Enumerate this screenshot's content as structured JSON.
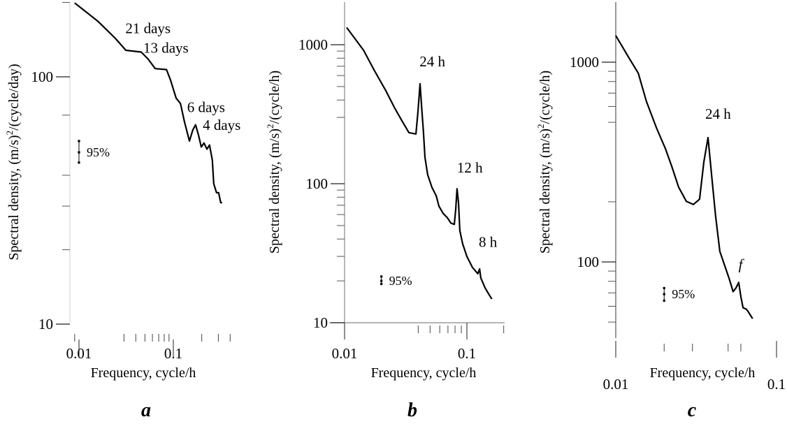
{
  "chart_data": [
    {
      "type": "line",
      "panel_label": "a",
      "xscale": "log",
      "yscale": "log",
      "xlabel": "Frequency, cycle/h",
      "ylabel_main": "Spectral density, (m/s)",
      "ylabel_sup": "2",
      "ylabel_tail": "/(cycle/day)",
      "xlim": [
        0.008,
        0.4
      ],
      "ylim": [
        10,
        200
      ],
      "x_ticks": [
        {
          "v": 0.01,
          "label": "0.01"
        },
        {
          "v": 0.1,
          "label": "0.1"
        }
      ],
      "x_minor_ticks": [
        0.009,
        0.03,
        0.04,
        0.05,
        0.06,
        0.07,
        0.08,
        0.09,
        0.2,
        0.3,
        0.4
      ],
      "y_ticks": [
        {
          "v": 10,
          "label": "10"
        },
        {
          "v": 100,
          "label": "100"
        }
      ],
      "y_minor_ticks": [
        20,
        30,
        40,
        70,
        200
      ],
      "series": [
        {
          "name": "spectrum",
          "x": [
            0.009,
            0.0158,
            0.0243,
            0.0314,
            0.0456,
            0.0541,
            0.0642,
            0.0846,
            0.0934,
            0.107,
            0.119,
            0.131,
            0.148,
            0.161,
            0.172,
            0.185,
            0.198,
            0.211,
            0.227,
            0.242,
            0.259,
            0.268,
            0.287,
            0.302,
            0.318,
            0.329
          ],
          "y": [
            199,
            168,
            143,
            128,
            126,
            118,
            108,
            107,
            97,
            82,
            78,
            66,
            55,
            61,
            64,
            58,
            52,
            54,
            51,
            53,
            46,
            37,
            34,
            34,
            31,
            31
          ]
        }
      ],
      "annotations": [
        {
          "text": "21 days",
          "x": 0.031,
          "y": 150
        },
        {
          "text": "13 days",
          "x": 0.048,
          "y": 125
        },
        {
          "text": "6 days",
          "x": 0.14,
          "y": 72
        },
        {
          "text": "4 days",
          "x": 0.205,
          "y": 61
        }
      ],
      "confidence": {
        "label": "95%",
        "x": 0.01,
        "y_low": 45,
        "y_center": 49.5,
        "y_high": 55
      }
    },
    {
      "type": "line",
      "panel_label": "b",
      "xscale": "log",
      "yscale": "log",
      "xlabel": "Frequency, cycle/h",
      "ylabel_main": "Spectral density, (m/s)",
      "ylabel_sup": "2",
      "ylabel_tail": "/(cycle/h)",
      "xlim": [
        0.01,
        0.2
      ],
      "ylim": [
        10,
        2000
      ],
      "x_ticks": [
        {
          "v": 0.01,
          "label": "0.01"
        },
        {
          "v": 0.1,
          "label": "0.1"
        }
      ],
      "x_minor_ticks": [
        0.04,
        0.05,
        0.06,
        0.07,
        0.08,
        0.09,
        0.2
      ],
      "y_ticks": [
        {
          "v": 10,
          "label": "10"
        },
        {
          "v": 100,
          "label": "100"
        },
        {
          "v": 1000,
          "label": "1000"
        }
      ],
      "y_minor_ticks": [
        20,
        30,
        40,
        50,
        60,
        70,
        80,
        90,
        300,
        400,
        500,
        600,
        700,
        800,
        900
      ],
      "series": [
        {
          "name": "spectrum",
          "x": [
            0.0104,
            0.0143,
            0.0174,
            0.0217,
            0.0258,
            0.0294,
            0.0336,
            0.0383,
            0.0398,
            0.0414,
            0.0425,
            0.0442,
            0.0454,
            0.0478,
            0.0518,
            0.0561,
            0.0591,
            0.064,
            0.0692,
            0.0741,
            0.0789,
            0.081,
            0.0831,
            0.0854,
            0.0876,
            0.0923,
            0.1,
            0.111,
            0.123,
            0.127,
            0.13,
            0.141,
            0.152,
            0.16
          ],
          "y": [
            1330,
            912,
            659,
            468,
            348,
            284,
            233,
            228,
            330,
            524,
            371,
            233,
            155,
            116,
            94,
            82,
            69,
            61,
            57,
            52,
            51,
            65,
            92,
            73,
            46,
            37,
            30,
            25,
            22.5,
            24.4,
            21,
            17.8,
            15.9,
            14.8
          ]
        }
      ],
      "annotations": [
        {
          "text": "24 h",
          "x": 0.041,
          "y": 700
        },
        {
          "text": "12 h",
          "x": 0.083,
          "y": 120
        },
        {
          "text": "8 h",
          "x": 0.125,
          "y": 35
        }
      ],
      "confidence": {
        "label": "95%",
        "x": 0.02,
        "y_low": 19,
        "y_center": 20,
        "y_high": 21.5
      }
    },
    {
      "type": "line",
      "panel_label": "c",
      "xscale": "log",
      "yscale": "log",
      "xlabel": "Frequency, cycle/h",
      "ylabel_main": "Spectral density, (m/s)",
      "ylabel_sup": "2",
      "ylabel_tail": "/(cycle/h)",
      "xlim": [
        0.01,
        0.1
      ],
      "ylim": [
        41.5,
        2000
      ],
      "x_ticks": [
        {
          "v": 0.01,
          "label": "0.01"
        },
        {
          "v": 0.1,
          "label": "0.1"
        }
      ],
      "x_minor_ticks": [
        0.02,
        0.03,
        0.05,
        0.06
      ],
      "y_ticks": [
        {
          "v": 100,
          "label": "100"
        },
        {
          "v": 1000,
          "label": "1000"
        }
      ],
      "y_minor_ticks": [
        50,
        60,
        70,
        80,
        90,
        200,
        500,
        600,
        700,
        800,
        900
      ],
      "series": [
        {
          "name": "spectrum",
          "x": [
            0.01,
            0.0122,
            0.0138,
            0.0155,
            0.0179,
            0.0204,
            0.0223,
            0.0246,
            0.0275,
            0.0304,
            0.0332,
            0.0353,
            0.0375,
            0.0398,
            0.0418,
            0.0444,
            0.0476,
            0.0506,
            0.0537,
            0.0559,
            0.0582,
            0.06,
            0.0619,
            0.065,
            0.067,
            0.071
          ],
          "y": [
            1359,
            1036,
            881,
            637,
            469,
            368,
            301,
            237,
            201,
            194,
            206,
            316,
            419,
            253,
            169,
            113,
            96,
            83,
            71,
            74,
            79,
            67,
            59,
            58,
            56,
            52
          ]
        }
      ],
      "annotations": [
        {
          "text": "24 h",
          "x": 0.036,
          "y": 520
        },
        {
          "text": "f",
          "x": 0.058,
          "y": 92,
          "italic": true
        }
      ],
      "confidence": {
        "label": "95%",
        "x": 0.02,
        "y_low": 64,
        "y_center": 69,
        "y_high": 74
      }
    }
  ]
}
